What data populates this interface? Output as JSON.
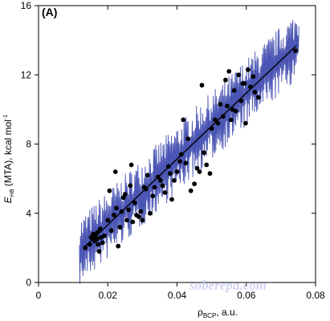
{
  "chart_data": {
    "type": "scatter",
    "panel_label": "(A)",
    "xlabel": "ρBCP, a.u.",
    "xlabel_main": "ρ",
    "xlabel_sub": "BCP",
    "xlabel_rest": ", a.u.",
    "ylabel_main": "E",
    "ylabel_sub": "HB",
    "ylabel_rest": " (MTA), kcal mol",
    "ylabel_sup": "-1",
    "xlim": [
      0,
      0.08
    ],
    "ylim": [
      0,
      16
    ],
    "x_ticks": [
      0,
      0.02,
      0.04,
      0.06,
      0.08
    ],
    "x_tick_labels": [
      "0",
      "0.02",
      "0.04",
      "0.06",
      "0.08"
    ],
    "y_ticks": [
      0,
      4,
      8,
      12,
      16
    ],
    "y_tick_labels": [
      "0",
      "4",
      "8",
      "12",
      "16"
    ],
    "grid": false,
    "fit_line": {
      "x": [
        0.013,
        0.0745
      ],
      "y": [
        2.0,
        13.7
      ]
    },
    "band_color": "#4a55b4",
    "point_color": "#000000",
    "points": [
      [
        0.0135,
        2.0
      ],
      [
        0.0148,
        2.2
      ],
      [
        0.0152,
        2.6
      ],
      [
        0.0158,
        2.8
      ],
      [
        0.0162,
        2.4
      ],
      [
        0.0165,
        2.7
      ],
      [
        0.0168,
        2.5
      ],
      [
        0.017,
        2.9
      ],
      [
        0.0172,
        2.2
      ],
      [
        0.0175,
        1.8
      ],
      [
        0.0178,
        3.1
      ],
      [
        0.018,
        2.6
      ],
      [
        0.0185,
        2.3
      ],
      [
        0.019,
        2.7
      ],
      [
        0.02,
        3.6
      ],
      [
        0.0205,
        5.3
      ],
      [
        0.021,
        3.0
      ],
      [
        0.0218,
        3.9
      ],
      [
        0.0222,
        6.4
      ],
      [
        0.0225,
        4.3
      ],
      [
        0.023,
        2.1
      ],
      [
        0.0235,
        3.2
      ],
      [
        0.024,
        4.1
      ],
      [
        0.0245,
        4.9
      ],
      [
        0.025,
        5.1
      ],
      [
        0.0255,
        3.6
      ],
      [
        0.026,
        4.2
      ],
      [
        0.0265,
        5.6
      ],
      [
        0.0268,
        6.8
      ],
      [
        0.0272,
        3.5
      ],
      [
        0.0278,
        4.6
      ],
      [
        0.0283,
        3.9
      ],
      [
        0.029,
        3.8
      ],
      [
        0.0295,
        4.1
      ],
      [
        0.03,
        3.6
      ],
      [
        0.0305,
        5.5
      ],
      [
        0.031,
        5.4
      ],
      [
        0.0315,
        6.2
      ],
      [
        0.0322,
        4.0
      ],
      [
        0.033,
        5.0
      ],
      [
        0.0335,
        5.5
      ],
      [
        0.0345,
        6.1
      ],
      [
        0.0352,
        5.9
      ],
      [
        0.0358,
        5.6
      ],
      [
        0.0365,
        5.2
      ],
      [
        0.0375,
        6.7
      ],
      [
        0.038,
        6.3
      ],
      [
        0.0385,
        4.8
      ],
      [
        0.0392,
        5.9
      ],
      [
        0.04,
        6.4
      ],
      [
        0.0408,
        7.0
      ],
      [
        0.0412,
        7.4
      ],
      [
        0.0418,
        9.4
      ],
      [
        0.0425,
        6.9
      ],
      [
        0.0432,
        8.3
      ],
      [
        0.044,
        5.3
      ],
      [
        0.045,
        5.7
      ],
      [
        0.0458,
        6.6
      ],
      [
        0.0465,
        6.4
      ],
      [
        0.0472,
        11.4
      ],
      [
        0.0478,
        7.5
      ],
      [
        0.0485,
        6.8
      ],
      [
        0.0495,
        6.3
      ],
      [
        0.05,
        8.9
      ],
      [
        0.051,
        9.4
      ],
      [
        0.0518,
        9.2
      ],
      [
        0.0525,
        10.3
      ],
      [
        0.0533,
        9.6
      ],
      [
        0.054,
        11.7
      ],
      [
        0.0545,
        10.2
      ],
      [
        0.055,
        12.2
      ],
      [
        0.0556,
        9.4
      ],
      [
        0.056,
        10.0
      ],
      [
        0.0565,
        11.1
      ],
      [
        0.057,
        9.9
      ],
      [
        0.0578,
        12.0
      ],
      [
        0.0585,
        10.5
      ],
      [
        0.059,
        11.5
      ],
      [
        0.0595,
        11.5
      ],
      [
        0.0598,
        9.2
      ],
      [
        0.0605,
        12.3
      ],
      [
        0.0612,
        11.3
      ],
      [
        0.062,
        11.9
      ],
      [
        0.0625,
        11.0
      ],
      [
        0.0635,
        10.7
      ],
      [
        0.0742,
        13.4
      ]
    ]
  },
  "watermark": "soberepa.com"
}
